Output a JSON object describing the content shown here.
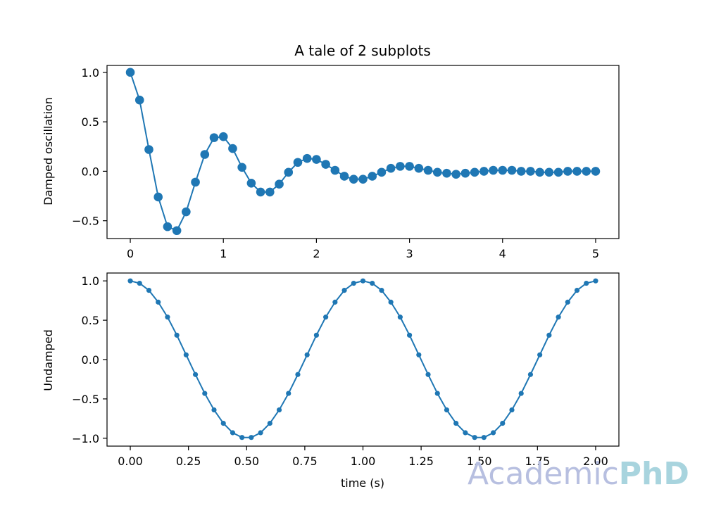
{
  "figure": {
    "title": "A tale of 2 subplots",
    "watermark": {
      "part1": "Academic",
      "part2": "PhD",
      "color1": "#b7bfe0",
      "color2": "#a8d4de"
    }
  },
  "chart_data": [
    {
      "type": "line",
      "title": "A tale of 2 subplots",
      "xlabel": "",
      "ylabel": "Damped oscillation",
      "xlim": [
        -0.25,
        5.25
      ],
      "ylim": [
        -0.68,
        1.07
      ],
      "xticks": [
        0,
        1,
        2,
        3,
        4,
        5
      ],
      "xtick_labels": [
        "0",
        "1",
        "2",
        "3",
        "4",
        "5"
      ],
      "yticks": [
        -0.5,
        0.0,
        0.5,
        1.0
      ],
      "ytick_labels": [
        "−0.5",
        "0.0",
        "0.5",
        "1.0"
      ],
      "marker": "o",
      "color": "#1f77b4",
      "grid": false,
      "series": [
        {
          "x": [
            0.0,
            0.1,
            0.2,
            0.3,
            0.4,
            0.5,
            0.6,
            0.7,
            0.8,
            0.9,
            1.0,
            1.1,
            1.2,
            1.3,
            1.4,
            1.5,
            1.6,
            1.7,
            1.8,
            1.9,
            2.0,
            2.1,
            2.2,
            2.3,
            2.4,
            2.5,
            2.6,
            2.7,
            2.8,
            2.9,
            3.0,
            3.1,
            3.2,
            3.3,
            3.4,
            3.5,
            3.6,
            3.7,
            3.8,
            3.9,
            4.0,
            4.1,
            4.2,
            4.3,
            4.4,
            4.5,
            4.6,
            4.7,
            4.8,
            4.9,
            5.0
          ],
          "y": [
            1.0,
            0.72,
            0.22,
            -0.26,
            -0.56,
            -0.6,
            -0.41,
            -0.11,
            0.17,
            0.34,
            0.35,
            0.23,
            0.04,
            -0.12,
            -0.21,
            -0.21,
            -0.13,
            -0.01,
            0.09,
            0.13,
            0.12,
            0.07,
            0.01,
            -0.05,
            -0.08,
            -0.08,
            -0.05,
            -0.01,
            0.03,
            0.05,
            0.05,
            0.03,
            0.01,
            -0.01,
            -0.02,
            -0.03,
            -0.02,
            -0.01,
            0.0,
            0.01,
            0.01,
            0.01,
            0.0,
            0.0,
            -0.01,
            -0.01,
            -0.01,
            0.0,
            0.0,
            0.0,
            0.0
          ]
        }
      ]
    },
    {
      "type": "line",
      "title": "",
      "xlabel": "time (s)",
      "ylabel": "Undamped",
      "xlim": [
        -0.1,
        2.1
      ],
      "ylim": [
        -1.1,
        1.1
      ],
      "xticks": [
        0.0,
        0.25,
        0.5,
        0.75,
        1.0,
        1.25,
        1.5,
        1.75,
        2.0
      ],
      "xtick_labels": [
        "0.00",
        "0.25",
        "0.50",
        "0.75",
        "1.00",
        "1.25",
        "1.50",
        "1.75",
        "2.00"
      ],
      "yticks": [
        -1.0,
        -0.5,
        0.0,
        0.5,
        1.0
      ],
      "ytick_labels": [
        "−1.0",
        "−0.5",
        "0.0",
        "0.5",
        "1.0"
      ],
      "marker": ".",
      "color": "#1f77b4",
      "grid": false,
      "series": [
        {
          "x": [
            0.0,
            0.04,
            0.08,
            0.12,
            0.16,
            0.2,
            0.24,
            0.28,
            0.32,
            0.36,
            0.4,
            0.44,
            0.48,
            0.52,
            0.56,
            0.6,
            0.64,
            0.68,
            0.72,
            0.76,
            0.8,
            0.84,
            0.88,
            0.92,
            0.96,
            1.0,
            1.04,
            1.08,
            1.12,
            1.16,
            1.2,
            1.24,
            1.28,
            1.32,
            1.36,
            1.4,
            1.44,
            1.48,
            1.52,
            1.56,
            1.6,
            1.64,
            1.68,
            1.72,
            1.76,
            1.8,
            1.84,
            1.88,
            1.92,
            1.96,
            2.0
          ],
          "y": [
            1.0,
            0.97,
            0.88,
            0.73,
            0.54,
            0.31,
            0.06,
            -0.19,
            -0.43,
            -0.64,
            -0.81,
            -0.93,
            -0.99,
            -0.99,
            -0.93,
            -0.81,
            -0.64,
            -0.43,
            -0.19,
            0.06,
            0.31,
            0.54,
            0.73,
            0.88,
            0.97,
            1.0,
            0.97,
            0.88,
            0.73,
            0.54,
            0.31,
            0.06,
            -0.19,
            -0.43,
            -0.64,
            -0.81,
            -0.93,
            -0.99,
            -0.99,
            -0.93,
            -0.81,
            -0.64,
            -0.43,
            -0.19,
            0.06,
            0.31,
            0.54,
            0.73,
            0.88,
            0.97,
            1.0
          ]
        }
      ]
    }
  ]
}
